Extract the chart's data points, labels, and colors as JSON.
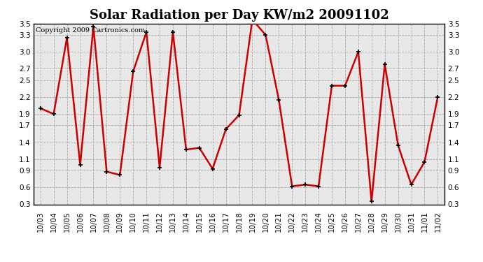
{
  "title": "Solar Radiation per Day KW/m2 20091102",
  "copyright_text": "Copyright 2009 Cartronics.com",
  "x_labels": [
    "10/03",
    "10/04",
    "10/05",
    "10/06",
    "10/07",
    "10/08",
    "10/09",
    "10/10",
    "10/11",
    "10/12",
    "10/13",
    "10/14",
    "10/15",
    "10/16",
    "10/17",
    "10/18",
    "10/19",
    "10/20",
    "10/21",
    "10/22",
    "10/23",
    "10/24",
    "10/25",
    "10/26",
    "10/27",
    "10/28",
    "10/29",
    "10/30",
    "10/31",
    "11/01",
    "11/02"
  ],
  "y_values": [
    2.0,
    1.9,
    3.25,
    1.0,
    3.45,
    0.88,
    0.82,
    2.65,
    3.35,
    0.95,
    3.35,
    1.27,
    1.3,
    0.93,
    1.63,
    1.88,
    3.57,
    3.3,
    2.15,
    0.62,
    0.65,
    0.62,
    2.4,
    2.4,
    3.0,
    0.35,
    2.78,
    1.35,
    0.65,
    1.05,
    2.2
  ],
  "line_color": "#cc0000",
  "marker": "+",
  "marker_color": "#000000",
  "marker_size": 5,
  "line_width": 1.8,
  "ylim": [
    0.3,
    3.5
  ],
  "yticks": [
    0.3,
    0.6,
    0.9,
    1.1,
    1.4,
    1.7,
    1.9,
    2.2,
    2.5,
    2.7,
    3.0,
    3.3,
    3.5
  ],
  "grid_color": "#aaaaaa",
  "grid_style": "--",
  "background_color": "#ffffff",
  "plot_bg_color": "#e8e8e8",
  "title_fontsize": 13,
  "tick_fontsize": 7.5,
  "copyright_fontsize": 7
}
